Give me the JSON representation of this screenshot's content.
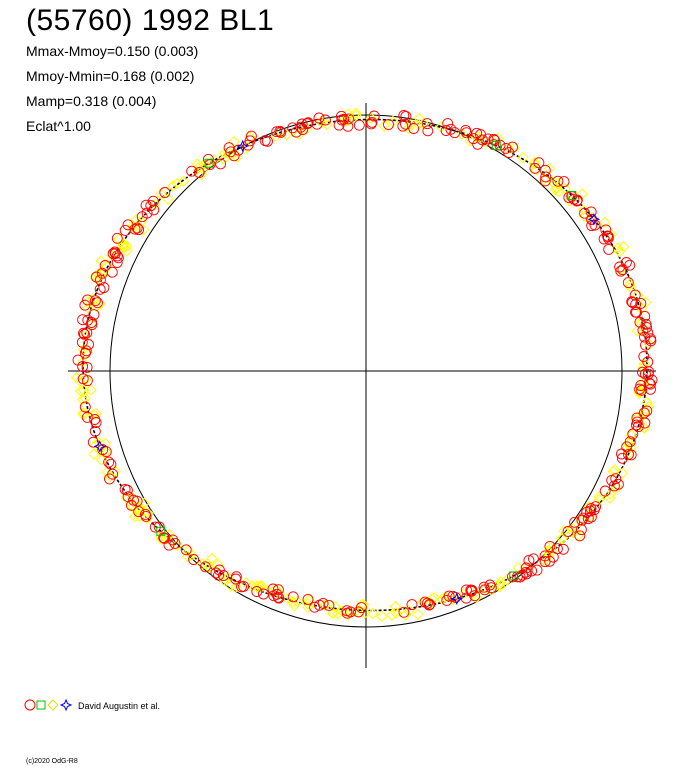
{
  "title": "(55760) 1992 BL1",
  "stats": [
    "Mmax-Mmoy=0.150 (0.003)",
    "Mmoy-Mmin=0.168 (0.002)",
    "Mamp=0.318 (0.004)",
    "Eclat^1.00"
  ],
  "legend": {
    "text": "David Augustin et al."
  },
  "footer": "(c)2020 OdG-R8",
  "colors": {
    "red": "#ff0000",
    "yellow": "#ffff00",
    "green": "#00c000",
    "blue": "#0000ff",
    "black": "#000000"
  },
  "chart_data": {
    "type": "polar-lightcurve",
    "reference_circle_radius": 1.0,
    "amplitude_mag": {
      "max_minus_mean": 0.15,
      "mean_minus_min": 0.168,
      "amp": 0.318
    },
    "series": [
      {
        "marker": "circle",
        "color": "red"
      },
      {
        "marker": "square",
        "color": "green"
      },
      {
        "marker": "diamond",
        "color": "yellow"
      },
      {
        "marker": "star",
        "color": "blue"
      }
    ]
  }
}
